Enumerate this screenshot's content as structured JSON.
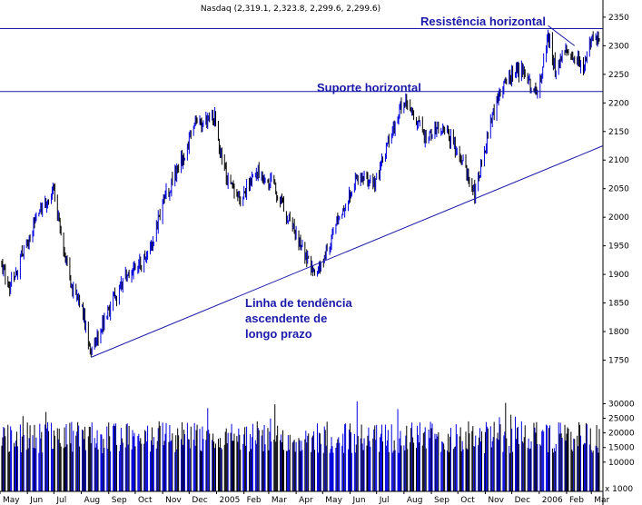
{
  "chart_data": {
    "type": "ohlc",
    "title": "Nasdaq (2,319.1, 2,323.8, 2,299.6, 2,299.6)",
    "price_axis": {
      "range": [
        1700,
        2380
      ],
      "ticks": [
        1750,
        1800,
        1850,
        1900,
        1950,
        2000,
        2050,
        2100,
        2150,
        2200,
        2250,
        2300,
        2350
      ],
      "side": "right"
    },
    "volume_axis": {
      "range": [
        0,
        32000
      ],
      "ticks": [
        10000,
        15000,
        20000,
        25000,
        30000
      ],
      "unit_label": "x 1000"
    },
    "x_axis": {
      "labels": [
        "May",
        "Jun",
        "Jul",
        "Aug",
        "Sep",
        "Oct",
        "Nov",
        "Dec",
        "2005",
        "Feb",
        "Mar",
        "Apr",
        "May",
        "Jun",
        "Jul",
        "Aug",
        "Sep",
        "Oct",
        "Nov",
        "Dec",
        "2006",
        "Feb",
        "Mar"
      ],
      "start": "2004-05-01",
      "end": "2006-03-10"
    },
    "price_keypoints": [
      {
        "date": "2004-05-01",
        "close": 1920
      },
      {
        "date": "2004-05-12",
        "close": 1880
      },
      {
        "date": "2004-06-10",
        "close": 1990
      },
      {
        "date": "2004-06-30",
        "close": 2050
      },
      {
        "date": "2004-07-20",
        "close": 1880
      },
      {
        "date": "2004-08-01",
        "close": 1850
      },
      {
        "date": "2004-08-12",
        "close": 1760
      },
      {
        "date": "2004-09-05",
        "close": 1850
      },
      {
        "date": "2004-09-22",
        "close": 1900
      },
      {
        "date": "2004-10-15",
        "close": 1930
      },
      {
        "date": "2004-11-05",
        "close": 2040
      },
      {
        "date": "2004-11-20",
        "close": 2090
      },
      {
        "date": "2004-12-08",
        "close": 2160
      },
      {
        "date": "2004-12-30",
        "close": 2175
      },
      {
        "date": "2005-01-10",
        "close": 2080
      },
      {
        "date": "2005-01-28",
        "close": 2030
      },
      {
        "date": "2005-02-15",
        "close": 2080
      },
      {
        "date": "2005-03-05",
        "close": 2060
      },
      {
        "date": "2005-03-25",
        "close": 1990
      },
      {
        "date": "2005-04-18",
        "close": 1910
      },
      {
        "date": "2005-04-28",
        "close": 1905
      },
      {
        "date": "2005-05-15",
        "close": 1980
      },
      {
        "date": "2005-06-08",
        "close": 2070
      },
      {
        "date": "2005-06-30",
        "close": 2060
      },
      {
        "date": "2005-07-20",
        "close": 2160
      },
      {
        "date": "2005-08-03",
        "close": 2210
      },
      {
        "date": "2005-08-25",
        "close": 2140
      },
      {
        "date": "2005-09-15",
        "close": 2160
      },
      {
        "date": "2005-10-05",
        "close": 2100
      },
      {
        "date": "2005-10-20",
        "close": 2040
      },
      {
        "date": "2005-11-08",
        "close": 2170
      },
      {
        "date": "2005-11-25",
        "close": 2240
      },
      {
        "date": "2005-12-12",
        "close": 2260
      },
      {
        "date": "2005-12-30",
        "close": 2205
      },
      {
        "date": "2006-01-11",
        "close": 2320
      },
      {
        "date": "2006-01-20",
        "close": 2250
      },
      {
        "date": "2006-02-01",
        "close": 2300
      },
      {
        "date": "2006-02-20",
        "close": 2260
      },
      {
        "date": "2006-03-01",
        "close": 2310
      },
      {
        "date": "2006-03-10",
        "close": 2320
      }
    ],
    "volume_typical_range": [
      13000,
      24000
    ],
    "lines": [
      {
        "name": "resistance",
        "from": {
          "date": "2004-05-01",
          "price": 2330
        },
        "to": {
          "date": "2006-03-10",
          "price": 2330
        }
      },
      {
        "name": "support",
        "from": {
          "date": "2004-05-01",
          "price": 2220
        },
        "to": {
          "date": "2006-03-10",
          "price": 2220
        }
      },
      {
        "name": "trend",
        "from": {
          "date": "2004-08-12",
          "price": 1755
        },
        "to": {
          "date": "2006-03-10",
          "price": 2125
        }
      },
      {
        "name": "short_down",
        "from": {
          "date": "2006-01-11",
          "price": 2335
        },
        "to": {
          "date": "2006-02-10",
          "price": 2300
        }
      }
    ],
    "annotations": {
      "resistance": "Resistência horizontal",
      "support": "Suporte horizontal",
      "trend_1": "Linha de tendência",
      "trend_2": "ascendente de",
      "trend_3": "longo prazo"
    },
    "colors": {
      "up": "#0000e0",
      "down": "#000000",
      "lines": "#1a1aa8",
      "annotation": "#1a1aa8"
    },
    "grid": false
  }
}
